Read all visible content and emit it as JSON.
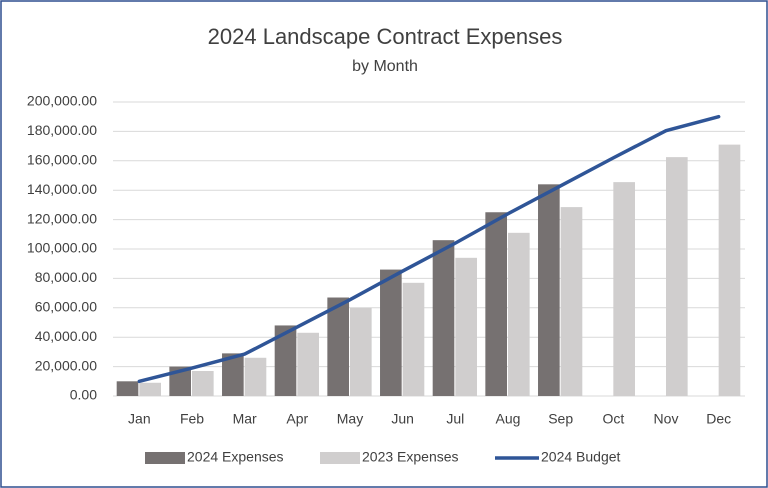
{
  "chart_data": {
    "type": "bar",
    "title": "2024 Landscape Contract Expenses",
    "subtitle": "by Month",
    "categories": [
      "Jan",
      "Feb",
      "Mar",
      "Apr",
      "May",
      "Jun",
      "Jul",
      "Aug",
      "Sep",
      "Oct",
      "Nov",
      "Dec"
    ],
    "series": [
      {
        "name": "2024 Expenses",
        "color": "#767171",
        "values": [
          10000,
          20000,
          29000,
          48000,
          67000,
          86000,
          106000,
          125000,
          144000,
          null,
          null,
          null
        ]
      },
      {
        "name": "2023 Expenses",
        "color": "#d0cece",
        "values": [
          9000,
          17000,
          26000,
          43000,
          60000,
          77000,
          94000,
          111000,
          128500,
          145500,
          162500,
          171000
        ]
      },
      {
        "name": "2024 Budget",
        "color": "#2f5597",
        "kind": "line",
        "values": [
          10000,
          19000,
          28500,
          47000,
          65500,
          85000,
          104000,
          124000,
          143000,
          162000,
          180500,
          190000
        ]
      }
    ],
    "ylim": [
      0,
      200000
    ],
    "yticks": [
      {
        "value": 0,
        "label": "0.00"
      },
      {
        "value": 20000,
        "label": "20,000.00"
      },
      {
        "value": 40000,
        "label": "40,000.00"
      },
      {
        "value": 60000,
        "label": "60,000.00"
      },
      {
        "value": 80000,
        "label": "80,000.00"
      },
      {
        "value": 100000,
        "label": "100,000.00"
      },
      {
        "value": 120000,
        "label": "120,000.00"
      },
      {
        "value": 140000,
        "label": "140,000.00"
      },
      {
        "value": 160000,
        "label": "160,000.00"
      },
      {
        "value": 180000,
        "label": "180,000.00"
      },
      {
        "value": 200000,
        "label": "200,000.00"
      }
    ],
    "grid": true,
    "legend": "bottom"
  }
}
